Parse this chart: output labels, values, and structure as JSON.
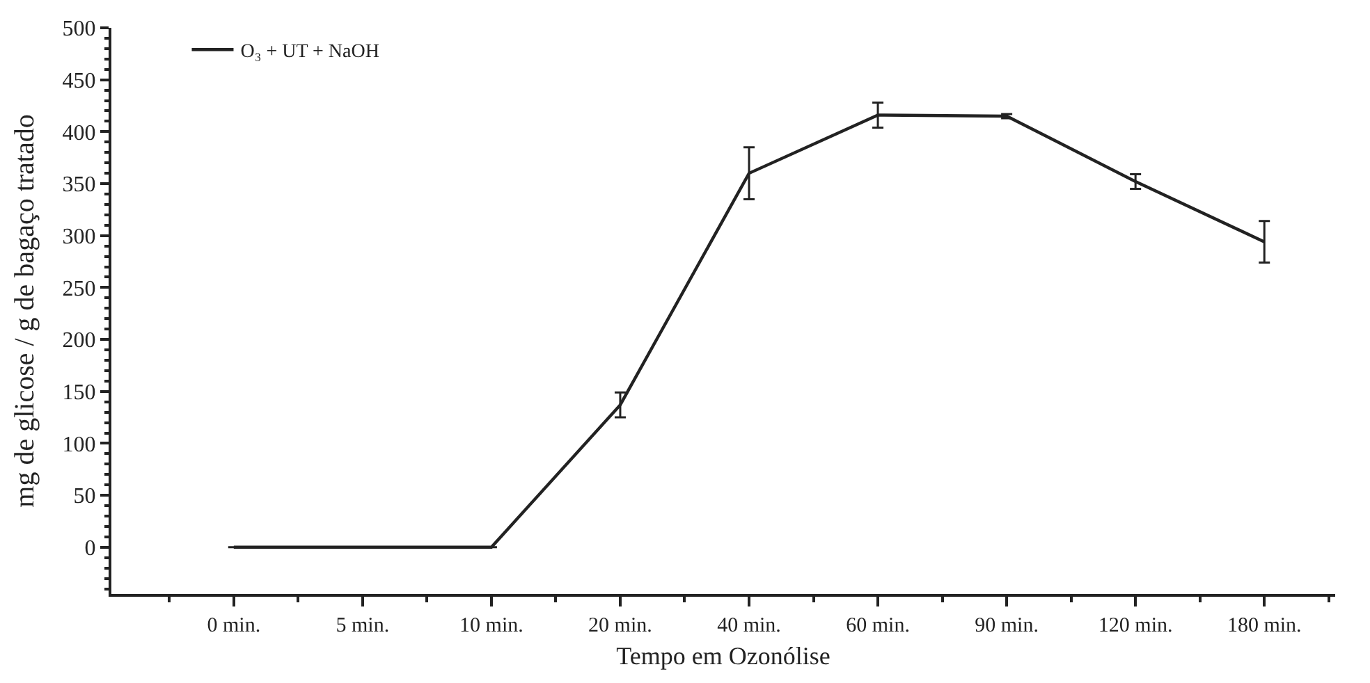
{
  "chart_data": {
    "type": "line",
    "xlabel": "Tempo em Ozonólise",
    "ylabel": "mg de glicose / g de bagaço tratado",
    "categories": [
      "0 min.",
      "5 min.",
      "10 min.",
      "20 min.",
      "40 min.",
      "60 min.",
      "90 min.",
      "120 min.",
      "180 min."
    ],
    "series": [
      {
        "name": "O₃ + UT + NaOH",
        "color": "#222222",
        "values": [
          0,
          0,
          0,
          137,
          360,
          416,
          415,
          352,
          294
        ],
        "errors": [
          null,
          null,
          null,
          12,
          25,
          12,
          2,
          7,
          20
        ]
      }
    ],
    "ylim": [
      -45,
      500
    ],
    "yticks": [
      0,
      50,
      100,
      150,
      200,
      250,
      300,
      350,
      400,
      450,
      500
    ],
    "legend": "top left",
    "marker": "none",
    "line_style": "solid"
  }
}
